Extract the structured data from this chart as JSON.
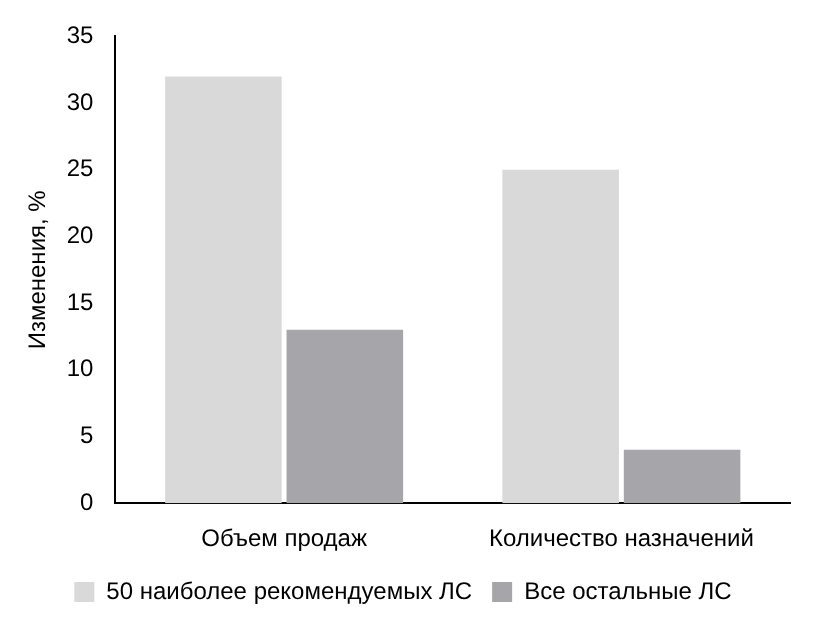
{
  "chart_data": {
    "type": "bar",
    "ylabel": "Изменения, %",
    "categories": [
      "Объем продаж",
      "Количество назначений"
    ],
    "series": [
      {
        "name": "50 наиболее рекомендуемых ЛС",
        "color": "#d9d9d9",
        "values": [
          32,
          25
        ]
      },
      {
        "name": "Все остальные ЛС",
        "color": "#a6a6aa",
        "values": [
          13,
          4
        ]
      }
    ],
    "ylim": [
      0,
      35
    ],
    "yticks": [
      0,
      5,
      10,
      15,
      20,
      25,
      30,
      35
    ],
    "grid": false,
    "legend": "bottom"
  }
}
